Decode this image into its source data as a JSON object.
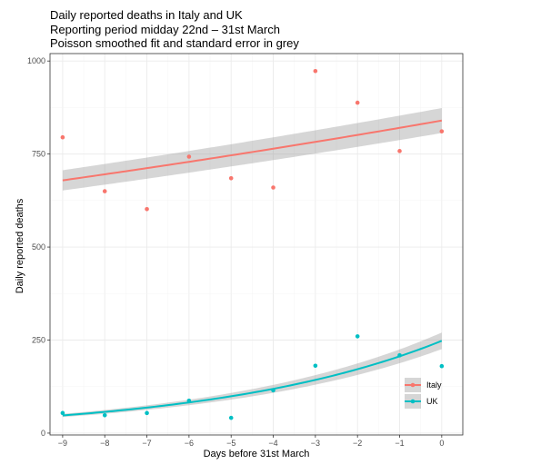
{
  "chart_data": {
    "type": "scatter",
    "title": "Daily reported deaths in Italy and UK",
    "subtitle_lines": [
      "Reporting period midday 22nd – 31st March",
      "Poisson smoothed fit and standard error in grey"
    ],
    "xlabel": "Days before 31st March",
    "ylabel": "Daily reported deaths",
    "xlim": [
      -9.3,
      0.5
    ],
    "ylim": [
      -5,
      1020
    ],
    "x_ticks": [
      -9,
      -8,
      -7,
      -6,
      -5,
      -4,
      -3,
      -2,
      -1,
      0
    ],
    "y_ticks": [
      0,
      250,
      500,
      750,
      1000
    ],
    "grid": true,
    "legend_position": "bottom-right",
    "series": [
      {
        "name": "Italy",
        "color": "#F8766D",
        "x": [
          -9,
          -8,
          -7,
          -6,
          -5,
          -4,
          -3,
          -2,
          -1,
          0
        ],
        "y": [
          795,
          650,
          602,
          743,
          685,
          660,
          973,
          888,
          758,
          811
        ],
        "fit": {
          "intercept": 840,
          "growth_rate": 0.0236,
          "se_low": 0.96,
          "se_high": 1.04
        }
      },
      {
        "name": "UK",
        "color": "#00BFC4",
        "x": [
          -9,
          -8,
          -7,
          -6,
          -5,
          -4,
          -3,
          -2,
          -1,
          0
        ],
        "y": [
          54,
          48,
          54,
          87,
          41,
          115,
          181,
          260,
          209,
          180
        ],
        "fit": {
          "intercept": 248,
          "growth_rate": 0.1837,
          "se_low": 0.91,
          "se_high": 1.09
        }
      }
    ]
  }
}
